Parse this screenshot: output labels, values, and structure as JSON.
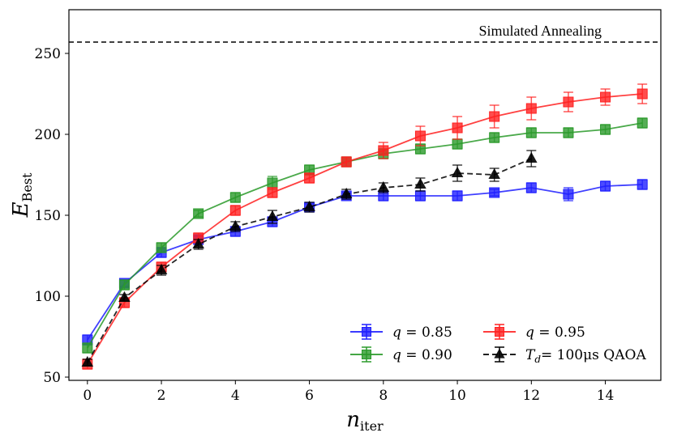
{
  "chart_data": {
    "type": "line",
    "title": "",
    "xlabel": "n",
    "xlabel_sub": "iter",
    "ylabel": "E",
    "ylabel_sub": "Best",
    "xlim": [
      -0.5,
      15.5
    ],
    "ylim": [
      48,
      277
    ],
    "xticks": [
      0,
      2,
      4,
      6,
      8,
      10,
      12,
      14
    ],
    "yticks": [
      50,
      100,
      150,
      200,
      250
    ],
    "grid": false,
    "legend_position": "lower-right",
    "reference_line": {
      "label": "Simulated Annealing",
      "value": 257,
      "style": "dashed",
      "color": "#000000"
    },
    "series": [
      {
        "name": "q = 0.85",
        "legend_var": "q",
        "legend_value": "0.85",
        "color": "#1f1fff",
        "marker": "square",
        "linestyle": "solid",
        "x": [
          0,
          1,
          2,
          3,
          4,
          5,
          6,
          7,
          8,
          9,
          10,
          11,
          12,
          13,
          14,
          15
        ],
        "values": [
          73,
          108,
          127,
          135,
          140,
          146,
          155,
          162,
          162,
          162,
          162,
          164,
          167,
          163,
          168,
          169
        ],
        "errors": [
          3,
          2,
          3,
          2,
          3,
          3,
          2,
          2,
          3,
          3,
          3,
          2,
          3,
          4,
          3,
          3
        ]
      },
      {
        "name": "q = 0.90",
        "legend_var": "q",
        "legend_value": "0.90",
        "color": "#2a9a2a",
        "marker": "square",
        "linestyle": "solid",
        "x": [
          0,
          1,
          2,
          3,
          4,
          5,
          6,
          7,
          8,
          9,
          10,
          11,
          12,
          13,
          14,
          15
        ],
        "values": [
          68,
          107,
          130,
          151,
          161,
          170,
          178,
          183,
          188,
          191,
          194,
          198,
          201,
          201,
          203,
          207
        ],
        "errors": [
          3,
          3,
          3,
          2,
          3,
          4,
          3,
          3,
          3,
          3,
          3,
          3,
          3,
          3,
          3,
          3
        ]
      },
      {
        "name": "q = 0.95",
        "legend_var": "q",
        "legend_value": "0.95",
        "color": "#ff2020",
        "marker": "square",
        "linestyle": "solid",
        "x": [
          0,
          1,
          2,
          3,
          4,
          5,
          6,
          7,
          8,
          9,
          10,
          11,
          12,
          13,
          14,
          15
        ],
        "values": [
          58,
          96,
          118,
          136,
          153,
          164,
          173,
          183,
          190,
          199,
          204,
          211,
          216,
          220,
          223,
          225
        ],
        "errors": [
          3,
          3,
          3,
          3,
          3,
          3,
          3,
          3,
          5,
          6,
          7,
          7,
          7,
          6,
          5,
          6
        ]
      },
      {
        "name": "T_d = 100μs QAOA",
        "legend_var": "T",
        "legend_sub": "d",
        "legend_value": "= 100μs QAOA",
        "color": "#000000",
        "marker": "triangle",
        "linestyle": "dashed",
        "x": [
          0,
          1,
          2,
          3,
          4,
          5,
          6,
          7,
          8,
          9,
          10,
          11,
          12
        ],
        "values": [
          59,
          99,
          116,
          132,
          143,
          149,
          155,
          163,
          167,
          169,
          176,
          175,
          185
        ],
        "errors": [
          2,
          2,
          3,
          3,
          3,
          4,
          3,
          3,
          3,
          4,
          5,
          4,
          5
        ]
      }
    ]
  }
}
